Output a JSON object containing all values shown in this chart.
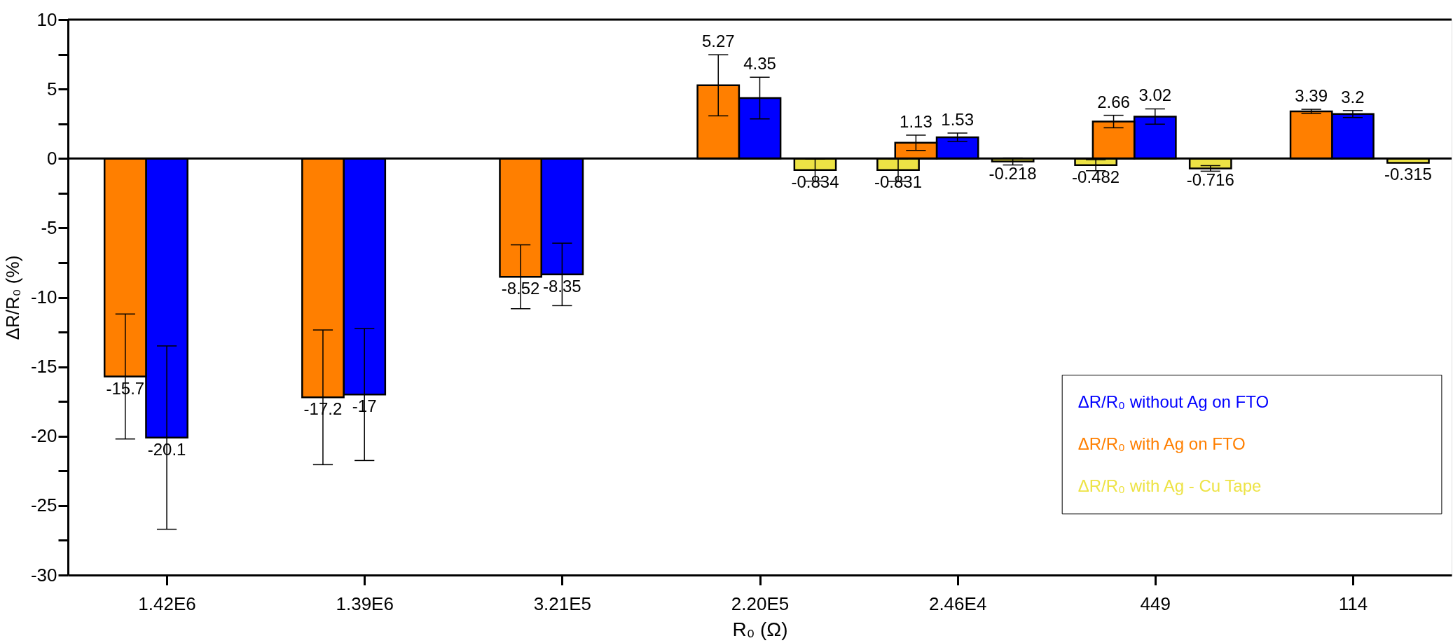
{
  "chart_data": {
    "type": "bar",
    "xlabel": "R₀ (Ω)",
    "ylabel": "ΔR/R₀ (%)",
    "categories": [
      "1.42E6",
      "1.39E6",
      "3.21E5",
      "2.20E5",
      "2.46E4",
      "449",
      "114"
    ],
    "series": [
      {
        "name": "ΔR/R₀ without Ag on FTO",
        "color": "#0000ff",
        "values": [
          -20.1,
          -17,
          -8.35,
          4.35,
          1.53,
          3.02,
          3.2
        ],
        "errors": [
          6.6,
          4.75,
          2.25,
          1.5,
          0.3,
          0.55,
          0.25
        ]
      },
      {
        "name": "ΔR/R₀ with Ag on FTO",
        "color": "#ff7f00",
        "values": [
          -15.7,
          -17.2,
          -8.52,
          5.27,
          1.13,
          2.66,
          3.39
        ],
        "errors": [
          4.5,
          4.85,
          2.3,
          2.2,
          0.55,
          0.45,
          0.15
        ]
      },
      {
        "name": "ΔR/R₀ with Ag - Cu Tape",
        "color": "#ede345",
        "values": [
          null,
          null,
          null,
          -0.834,
          -0.218,
          -0.716,
          -0.315
        ],
        "errors": [
          null,
          null,
          null,
          0.8,
          0.25,
          0.2,
          null
        ]
      },
      {
        "color": "#ede345",
        "values": [
          null,
          null,
          null,
          null,
          -0.831,
          -0.482,
          null
        ],
        "errors": [
          null,
          null,
          null,
          null,
          0.82,
          0.4,
          null
        ]
      }
    ],
    "ylim": [
      -30,
      10
    ],
    "yticks": [
      -30,
      {
        "value": -27.5,
        "label": null
      },
      -25,
      {
        "value": -22.5,
        "label": null
      },
      -20,
      {
        "value": -17.5,
        "label": null
      },
      -15,
      {
        "value": -12.5,
        "label": null
      },
      -10,
      {
        "value": -7.5,
        "label": null
      },
      -5,
      {
        "value": -2.5,
        "label": null
      },
      0,
      {
        "value": 2.5,
        "label": null
      },
      5,
      {
        "value": 7.5,
        "label": null
      },
      10
    ],
    "ref_lines": [
      {
        "axis": "y",
        "value": 0,
        "color": "#000000"
      }
    ],
    "data_labels": true,
    "legend": "bottom right"
  }
}
